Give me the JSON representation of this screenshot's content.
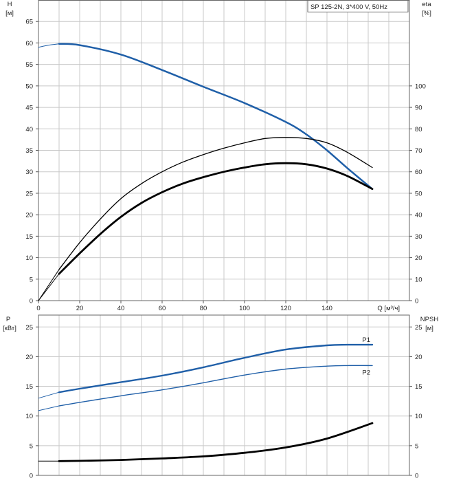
{
  "chart_data": [
    {
      "type": "line",
      "title": "",
      "legend_box": "SP 125-2N, 3*400 V, 50Hz",
      "xlabel": "Q [м³/ч]",
      "ylabel_left": [
        "H",
        "[м]"
      ],
      "ylabel_right": [
        "eta",
        "[%]"
      ],
      "xlim": [
        0,
        180
      ],
      "x_ticks": [
        0,
        20,
        40,
        60,
        80,
        100,
        120,
        140
      ],
      "ylim_left": [
        0,
        70
      ],
      "y_ticks_left": [
        0,
        5,
        10,
        15,
        20,
        25,
        30,
        35,
        40,
        45,
        50,
        55,
        60,
        65
      ],
      "ylim_right": [
        0,
        140
      ],
      "y_ticks_right": [
        0,
        10,
        20,
        30,
        40,
        50,
        60,
        70,
        80,
        90,
        100
      ],
      "grid": true,
      "series": [
        {
          "axis": "left",
          "color": "#1f5fa8",
          "width": 2.5,
          "x": [
            10,
            20,
            40,
            60,
            80,
            100,
            120,
            130,
            140,
            150,
            162
          ],
          "y": [
            59.8,
            59.5,
            57.3,
            53.7,
            49.8,
            46.0,
            41.6,
            38.7,
            35.0,
            30.8,
            26.0
          ]
        },
        {
          "axis": "left",
          "color": "#1f5fa8",
          "width": 1,
          "style": "extrapolated",
          "x": [
            0,
            5,
            10
          ],
          "y": [
            59.0,
            59.5,
            59.8
          ]
        },
        {
          "axis": "right",
          "color": "#000000",
          "width": 1.3,
          "x": [
            10,
            20,
            30,
            40,
            50,
            60,
            70,
            80,
            90,
            100,
            110,
            120,
            130,
            140,
            150,
            162
          ],
          "y": [
            14.5,
            27,
            38,
            47.5,
            54.5,
            60,
            64.5,
            68,
            71,
            73.5,
            75.5,
            76,
            75.5,
            73.5,
            69,
            62
          ]
        },
        {
          "axis": "right",
          "color": "#000000",
          "width": 1,
          "style": "extrapolated",
          "x": [
            0,
            10
          ],
          "y": [
            0,
            14.5
          ]
        },
        {
          "axis": "right",
          "color": "#000000",
          "width": 2.8,
          "x": [
            10,
            20,
            30,
            40,
            50,
            60,
            70,
            80,
            90,
            100,
            110,
            120,
            130,
            140,
            150,
            162
          ],
          "y": [
            12.5,
            22,
            31,
            39,
            45.5,
            50.5,
            54.5,
            57.5,
            60,
            62,
            63.5,
            64,
            63.5,
            61.5,
            58,
            52
          ]
        },
        {
          "axis": "right",
          "color": "#000000",
          "width": 1,
          "style": "extrapolated",
          "x": [
            0,
            10
          ],
          "y": [
            0,
            12.5
          ]
        }
      ]
    },
    {
      "type": "line",
      "title": "",
      "ylabel_left": [
        "P",
        "[кВт]"
      ],
      "ylabel_right": [
        "NPSH",
        "[м]"
      ],
      "xlim": [
        0,
        180
      ],
      "ylim_left": [
        0,
        27
      ],
      "y_ticks_left": [
        0,
        5,
        10,
        15,
        20,
        25
      ],
      "ylim_right": [
        0,
        27
      ],
      "y_ticks_right": [
        0,
        5,
        10,
        15,
        20,
        25
      ],
      "grid": true,
      "series": [
        {
          "name": "P1",
          "axis": "left",
          "color": "#1f5fa8",
          "width": 2.4,
          "x": [
            10,
            20,
            40,
            60,
            80,
            100,
            120,
            140,
            150,
            162
          ],
          "y": [
            14.0,
            14.6,
            15.7,
            16.8,
            18.2,
            19.8,
            21.2,
            21.9,
            22.0,
            22.0
          ]
        },
        {
          "axis": "left",
          "color": "#1f5fa8",
          "width": 1,
          "style": "extrapolated",
          "x": [
            0,
            10
          ],
          "y": [
            13.0,
            14.0
          ]
        },
        {
          "name": "P2",
          "axis": "left",
          "color": "#1f5fa8",
          "width": 1.4,
          "x": [
            10,
            20,
            40,
            60,
            80,
            100,
            120,
            140,
            150,
            162
          ],
          "y": [
            11.7,
            12.3,
            13.4,
            14.4,
            15.6,
            16.9,
            17.9,
            18.4,
            18.5,
            18.5
          ]
        },
        {
          "axis": "left",
          "color": "#1f5fa8",
          "width": 1,
          "style": "extrapolated",
          "x": [
            0,
            10
          ],
          "y": [
            10.9,
            11.7
          ]
        },
        {
          "axis": "right",
          "color": "#000000",
          "width": 2.8,
          "x": [
            10,
            20,
            40,
            60,
            80,
            100,
            120,
            140,
            162
          ],
          "y": [
            2.4,
            2.45,
            2.6,
            2.85,
            3.2,
            3.8,
            4.7,
            6.2,
            8.8
          ]
        },
        {
          "axis": "right",
          "color": "#000000",
          "width": 1,
          "style": "extrapolated",
          "x": [
            0,
            10
          ],
          "y": [
            2.4,
            2.4
          ]
        }
      ]
    }
  ]
}
